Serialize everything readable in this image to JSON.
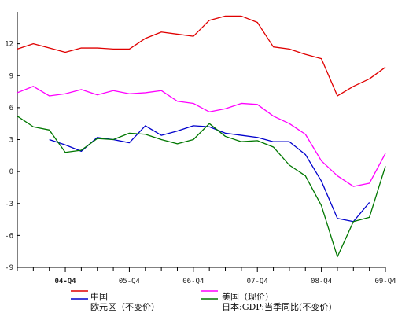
{
  "chart_data": {
    "type": "line",
    "title": "",
    "xlabel": "",
    "ylabel": "",
    "ylim": [
      -9,
      15
    ],
    "yticks": [
      -9,
      -6,
      -3,
      0,
      3,
      6,
      9,
      12
    ],
    "xtick_labels": [
      "04-Q4",
      "05-Q4",
      "06-Q4",
      "07-Q4",
      "08-Q4",
      "09-Q4"
    ],
    "xtick_indices": [
      3,
      7,
      11,
      15,
      19,
      23
    ],
    "grid": false,
    "legend_placement": "bottom",
    "series": [
      {
        "name": "中国",
        "color": "#e00000",
        "values": [
          11.5,
          12.0,
          11.6,
          11.2,
          11.6,
          11.6,
          11.5,
          11.5,
          12.5,
          13.1,
          12.9,
          12.7,
          14.2,
          14.6,
          14.6,
          14.0,
          11.7,
          11.5,
          11.0,
          10.6,
          7.1,
          8.0,
          8.7,
          9.8
        ]
      },
      {
        "name": "美国（现价）",
        "color": "#ff00ff",
        "values": [
          7.4,
          8.0,
          7.1,
          7.3,
          7.7,
          7.2,
          7.6,
          7.3,
          7.4,
          7.6,
          6.6,
          6.4,
          5.6,
          5.9,
          6.4,
          6.3,
          5.2,
          4.5,
          3.5,
          1.0,
          -0.4,
          -1.4,
          -1.1,
          1.7
        ]
      },
      {
        "name": "欧元区（不变价）",
        "color": "#0000cc",
        "start_index": 2,
        "values": [
          3.0,
          2.5,
          1.9,
          3.2,
          3.0,
          2.7,
          4.3,
          3.4,
          3.8,
          4.3,
          4.2,
          3.6,
          3.4,
          3.2,
          2.8,
          2.8,
          1.6,
          -0.9,
          -4.4,
          -4.7,
          -2.9
        ]
      },
      {
        "name": "日本:GDP:当季同比(不变价)",
        "color": "#007700",
        "values": [
          5.2,
          4.2,
          3.9,
          1.8,
          2.0,
          3.1,
          3.0,
          3.6,
          3.5,
          3.0,
          2.6,
          3.0,
          4.5,
          3.3,
          2.8,
          2.9,
          2.3,
          0.6,
          -0.4,
          -3.2,
          -8.0,
          -4.7,
          -4.3,
          0.5
        ]
      }
    ]
  }
}
